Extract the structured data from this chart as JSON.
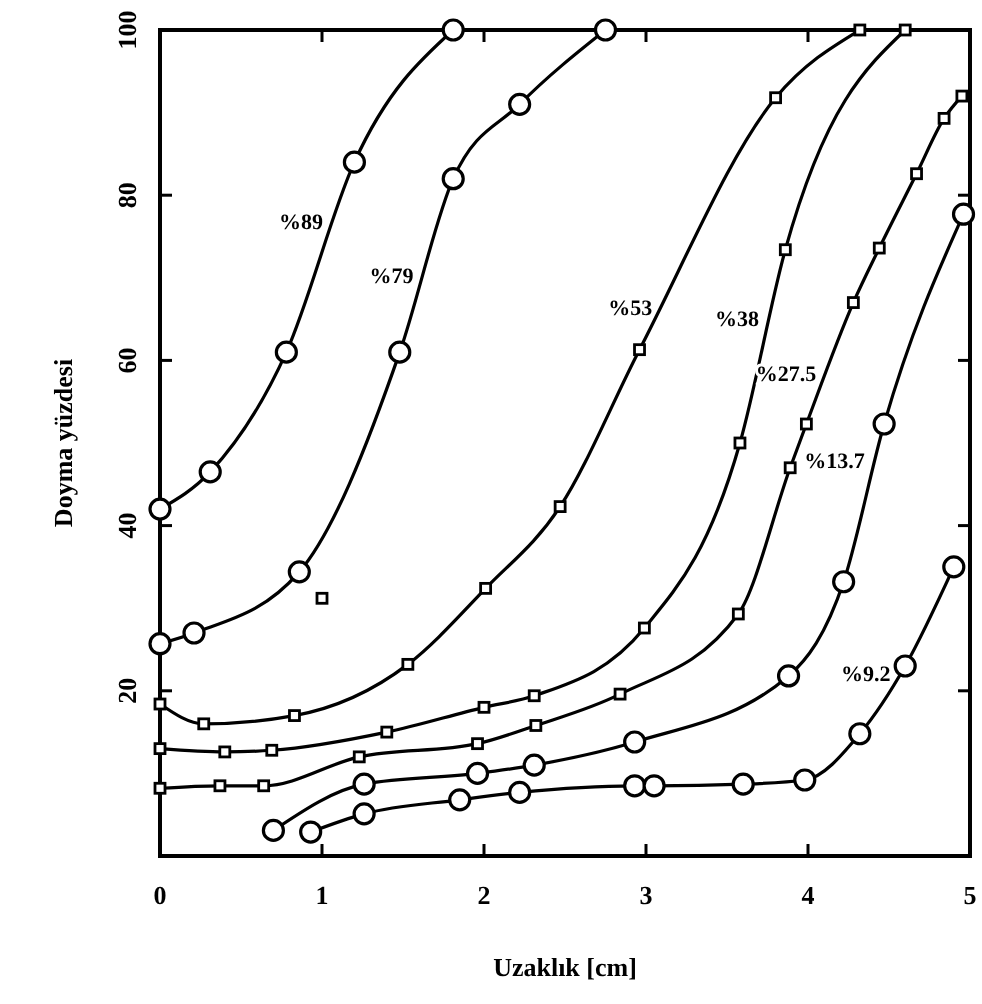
{
  "chart_data": {
    "type": "line",
    "xlabel": "Uzaklık [cm]",
    "ylabel": "Doyma yüzdesi",
    "xlim": [
      0,
      5
    ],
    "ylim": [
      0,
      100
    ],
    "xticks": [
      0,
      1,
      2,
      3,
      4,
      5
    ],
    "yticks": [
      20,
      40,
      60,
      80,
      100
    ],
    "grid": false,
    "line_style": "solid",
    "series": [
      {
        "name": "%89",
        "color": "#000000",
        "marker": "circle",
        "x": [
          0,
          0.31,
          0.78,
          1.2,
          1.81
        ],
        "values": [
          42,
          46.5,
          61,
          84,
          100
        ]
      },
      {
        "name": "%79",
        "color": "#000000",
        "marker": "circle",
        "x": [
          0,
          0.21,
          0.86,
          1.48,
          1.81,
          2.22,
          2.75
        ],
        "values": [
          25.7,
          27,
          34.4,
          61,
          82,
          91,
          100
        ]
      },
      {
        "name": "%53",
        "color": "#000000",
        "marker": "square",
        "x": [
          0,
          0.27,
          0.83,
          1.53,
          2.01,
          2.47,
          2.96,
          3.8,
          4.32
        ],
        "values": [
          18.4,
          16,
          17,
          23.2,
          32.4,
          42.3,
          61.3,
          91.8,
          100
        ]
      },
      {
        "name": "%38",
        "color": "#000000",
        "marker": "square",
        "x": [
          0,
          0.4,
          0.69,
          1.4,
          2,
          2.31,
          2.99,
          3.58,
          3.86,
          4.6
        ],
        "values": [
          13,
          12.6,
          12.8,
          15,
          18,
          19.4,
          27.6,
          50,
          73.4,
          100
        ]
      },
      {
        "name": "%27.5",
        "color": "#000000",
        "marker": "square",
        "x": [
          0,
          0.37,
          0.64,
          1.23,
          1.96,
          2.32,
          2.84,
          3.57,
          3.89,
          3.99,
          4.28,
          4.44,
          4.67,
          4.84,
          4.95
        ],
        "values": [
          8.2,
          8.5,
          8.5,
          12,
          13.6,
          15.8,
          19.6,
          29.3,
          47,
          52.3,
          67,
          73.6,
          82.6,
          89.3,
          92
        ]
      },
      {
        "name": "%13.7",
        "color": "#000000",
        "marker": "circle",
        "x": [
          0.7,
          1.26,
          1.96,
          2.31,
          2.93,
          3.88,
          4.22,
          4.47,
          4.96
        ],
        "values": [
          3.1,
          8.7,
          10,
          11,
          13.8,
          21.8,
          33.2,
          52.3,
          77.7
        ]
      },
      {
        "name": "%9.2",
        "color": "#000000",
        "marker": "circle",
        "x": [
          0.93,
          1.26,
          1.85,
          2.22,
          2.93,
          3.05,
          3.6,
          3.98,
          4.32,
          4.6,
          4.9
        ],
        "values": [
          2.9,
          5.1,
          6.8,
          7.7,
          8.5,
          8.5,
          8.7,
          9.2,
          14.8,
          23,
          35
        ]
      },
      {
        "type": "scatter",
        "color": "#000000",
        "marker": "square",
        "x": [
          1
        ],
        "values": [
          31.2
        ]
      }
    ]
  }
}
